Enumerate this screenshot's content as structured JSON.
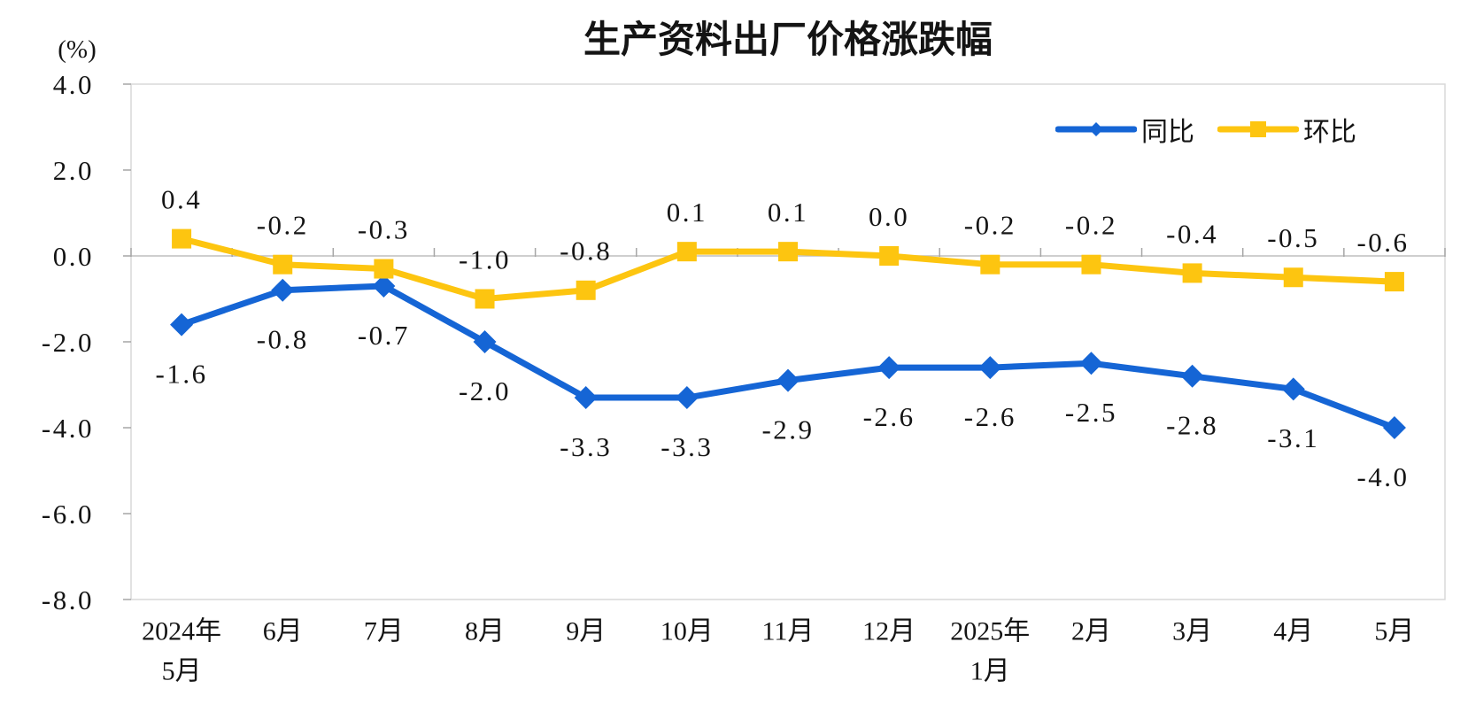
{
  "chart_data": {
    "type": "line",
    "title": "生产资料出厂价格涨跌幅",
    "unit_label": "(%)",
    "categories": [
      [
        "2024年",
        "5月"
      ],
      [
        "6月"
      ],
      [
        "7月"
      ],
      [
        "8月"
      ],
      [
        "9月"
      ],
      [
        "10月"
      ],
      [
        "11月"
      ],
      [
        "12月"
      ],
      [
        "2025年",
        "1月"
      ],
      [
        "2月"
      ],
      [
        "3月"
      ],
      [
        "4月"
      ],
      [
        "5月"
      ]
    ],
    "series": [
      {
        "key": "yoy",
        "name": "同比",
        "color": "#1565D5",
        "marker": "diamond",
        "label_position": "below",
        "values": [
          -1.6,
          -0.8,
          -0.7,
          -2.0,
          -3.3,
          -3.3,
          -2.9,
          -2.6,
          -2.6,
          -2.5,
          -2.8,
          -3.1,
          -4.0
        ],
        "labels": [
          "-1.6",
          "-0.8",
          "-0.7",
          "-2.0",
          "-3.3",
          "-3.3",
          "-2.9",
          "-2.6",
          "-2.6",
          "-2.5",
          "-2.8",
          "-3.1",
          "-4.0"
        ]
      },
      {
        "key": "mom",
        "name": "环比",
        "color": "#FDC510",
        "marker": "square",
        "label_position": "above",
        "values": [
          0.4,
          -0.2,
          -0.3,
          -1.0,
          -0.8,
          0.1,
          0.1,
          0.0,
          -0.2,
          -0.2,
          -0.4,
          -0.5,
          -0.6
        ],
        "labels": [
          "0.4",
          "-0.2",
          "-0.3",
          "-1.0",
          "-0.8",
          "0.1",
          "0.1",
          "0.0",
          "-0.2",
          "-0.2",
          "-0.4",
          "-0.5",
          "-0.6"
        ]
      }
    ],
    "y_axis": {
      "min": -8.0,
      "max": 4.0,
      "tick_step": 2.0,
      "tick_labels": [
        "4.0",
        "2.0",
        "0.0",
        "-2.0",
        "-4.0",
        "-6.0",
        "-8.0"
      ]
    },
    "legend": {
      "position": "top-right",
      "entries": [
        "同比",
        "环比"
      ]
    },
    "grid": false,
    "colors": {
      "plot_border": "#D9D9D9",
      "zero_line": "#BFBFBF",
      "tick": "#A6A6A6",
      "text": "#141414",
      "background": "#FFFFFF"
    }
  }
}
